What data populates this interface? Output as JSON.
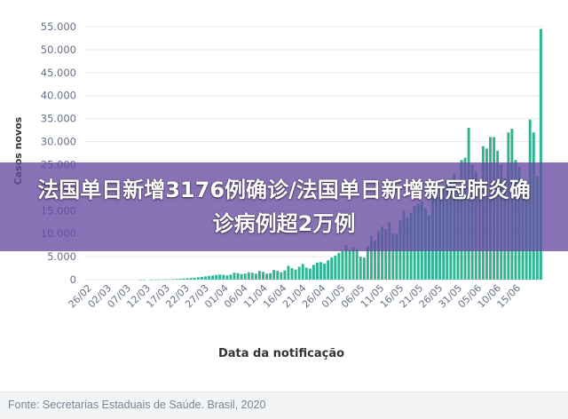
{
  "banner": {
    "headline": "法国单日新增3176例确诊/法国单日新增新冠肺炎确诊病例超2万例"
  },
  "footer": {
    "source": "Fonte: Secretarias Estaduais de Saúde. Brasil, 2020"
  },
  "colors": {
    "bar": "#2fb491",
    "grid": "#e6e9ee",
    "banner": "#674aa0"
  },
  "chart_data": {
    "type": "bar",
    "xlabel": "Data da notificação",
    "ylabel": "Casos novos",
    "ylim": [
      0,
      55000
    ],
    "y_ticks": [
      "0",
      "5.000",
      "10.000",
      "15.000",
      "20.000",
      "25.000",
      "30.000",
      "35.000",
      "40.000",
      "45.000",
      "50.000",
      "55.000"
    ],
    "x_tick_labels": [
      "26/02",
      "02/03",
      "07/03",
      "12/03",
      "17/03",
      "22/03",
      "27/03",
      "01/04",
      "06/04",
      "11/04",
      "16/04",
      "21/04",
      "26/04",
      "01/05",
      "06/05",
      "11/05",
      "16/05",
      "21/05",
      "26/05",
      "31/05",
      "05/06",
      "10/06",
      "15/06"
    ],
    "grid": true,
    "values": [
      0,
      0,
      0,
      0,
      0,
      0,
      0,
      0,
      0,
      0,
      0,
      0,
      0,
      0,
      5,
      10,
      0,
      10,
      20,
      30,
      40,
      60,
      80,
      100,
      150,
      200,
      250,
      300,
      350,
      400,
      500,
      600,
      700,
      800,
      900,
      1000,
      1100,
      1050,
      900,
      1100,
      1500,
      1400,
      1200,
      1300,
      1600,
      1500,
      1300,
      1900,
      1700,
      1300,
      1400,
      2100,
      1900,
      1600,
      2000,
      3000,
      2500,
      2200,
      2800,
      3400,
      2600,
      2400,
      3200,
      3700,
      3800,
      3500,
      4200,
      4800,
      5200,
      5800,
      6200,
      7500,
      6500,
      7000,
      6500,
      5000,
      4800,
      7300,
      9500,
      8500,
      10500,
      11500,
      11000,
      12500,
      10000,
      9800,
      13000,
      15000,
      13500,
      14500,
      16000,
      16500,
      17000,
      15500,
      14000,
      18000,
      19500,
      18000,
      20500,
      21500,
      22000,
      23000,
      19500,
      26000,
      26500,
      33000,
      25000,
      23500,
      21000,
      29000,
      28500,
      31000,
      31000,
      28000,
      25000,
      22000,
      32000,
      32800,
      26000,
      24500,
      21000,
      19500,
      34800,
      32000,
      22500,
      54500
    ],
    "source": "Fonte: Secretarias Estaduais de Saúde. Brasil, 2020"
  }
}
